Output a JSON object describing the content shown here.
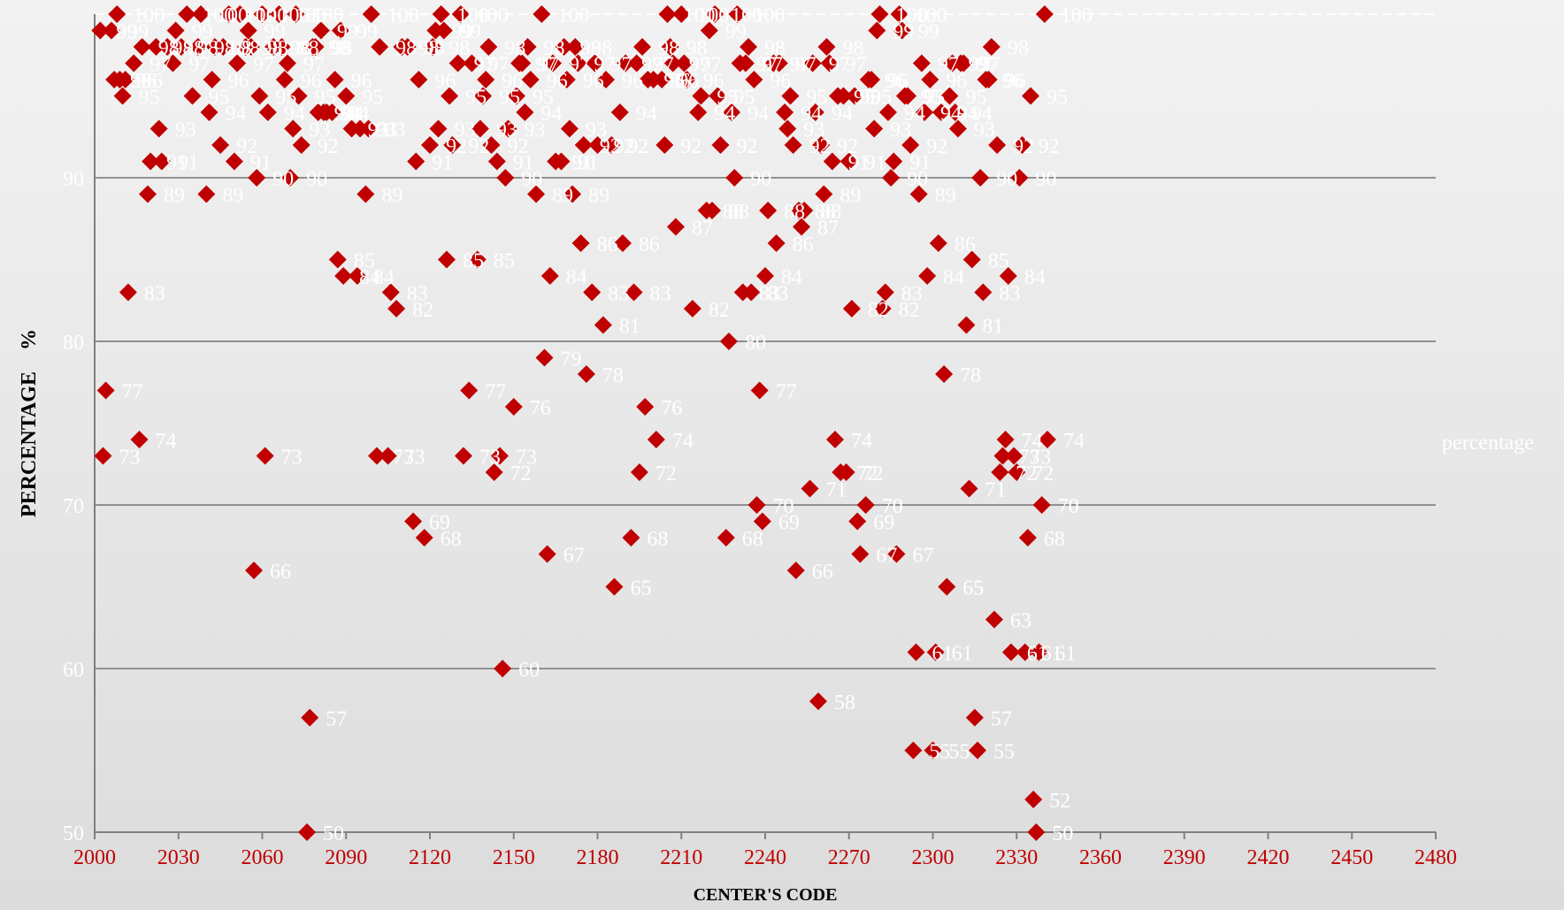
{
  "chart_data": {
    "type": "scatter",
    "xlabel": "CENTER'S CODE",
    "ylabel": "PERCENTAGE    %",
    "xlim": [
      2000,
      2480
    ],
    "ylim": [
      50,
      100
    ],
    "x_ticks": [
      "2000",
      "2030",
      "2060",
      "2090",
      "2120",
      "2150",
      "2180",
      "2210",
      "2240",
      "2270",
      "2300",
      "2330",
      "2360",
      "2390",
      "2420",
      "2450",
      "2480"
    ],
    "y_ticks": [
      "50",
      "60",
      "70",
      "80",
      "90"
    ],
    "grid": "horizontal",
    "legend_position": "right",
    "colors": {
      "marker": "#c00000",
      "tick_x": "#c00000",
      "label": "#ffffff",
      "grid": "#909090"
    },
    "series": [
      {
        "name": "percentage",
        "points": [
          [
            2002,
            99
          ],
          [
            2003,
            73
          ],
          [
            2004,
            77
          ],
          [
            2006,
            99
          ],
          [
            2007,
            96
          ],
          [
            2008,
            100
          ],
          [
            2009,
            96
          ],
          [
            2010,
            95
          ],
          [
            2011,
            96
          ],
          [
            2012,
            83
          ],
          [
            2014,
            97
          ],
          [
            2016,
            74
          ],
          [
            2017,
            98
          ],
          [
            2019,
            89
          ],
          [
            2020,
            91
          ],
          [
            2022,
            98
          ],
          [
            2023,
            93
          ],
          [
            2024,
            91
          ],
          [
            2026,
            98
          ],
          [
            2028,
            97
          ],
          [
            2029,
            99
          ],
          [
            2031,
            98
          ],
          [
            2033,
            100
          ],
          [
            2035,
            95
          ],
          [
            2037,
            98
          ],
          [
            2038,
            100
          ],
          [
            2040,
            89
          ],
          [
            2041,
            94
          ],
          [
            2042,
            96
          ],
          [
            2043,
            98
          ],
          [
            2045,
            92
          ],
          [
            2046,
            98
          ],
          [
            2048,
            100
          ],
          [
            2050,
            91
          ],
          [
            2051,
            97
          ],
          [
            2052,
            100
          ],
          [
            2054,
            98
          ],
          [
            2055,
            99
          ],
          [
            2056,
            98
          ],
          [
            2057,
            66
          ],
          [
            2058,
            90
          ],
          [
            2059,
            95
          ],
          [
            2060,
            100
          ],
          [
            2061,
            73
          ],
          [
            2062,
            94
          ],
          [
            2064,
            98
          ],
          [
            2066,
            100
          ],
          [
            2067,
            98
          ],
          [
            2068,
            96
          ],
          [
            2069,
            97
          ],
          [
            2070,
            90
          ],
          [
            2071,
            93
          ],
          [
            2072,
            100
          ],
          [
            2073,
            95
          ],
          [
            2074,
            92
          ],
          [
            2076,
            50
          ],
          [
            2077,
            57
          ],
          [
            2078,
            98
          ],
          [
            2079,
            98
          ],
          [
            2080,
            94
          ],
          [
            2081,
            99
          ],
          [
            2082,
            94
          ],
          [
            2083,
            94
          ],
          [
            2085,
            94
          ],
          [
            2086,
            96
          ],
          [
            2087,
            85
          ],
          [
            2088,
            99
          ],
          [
            2089,
            84
          ],
          [
            2090,
            95
          ],
          [
            2092,
            93
          ],
          [
            2094,
            84
          ],
          [
            2095,
            93
          ],
          [
            2097,
            89
          ],
          [
            2098,
            93
          ],
          [
            2099,
            100
          ],
          [
            2101,
            73
          ],
          [
            2102,
            98
          ],
          [
            2105,
            73
          ],
          [
            2106,
            83
          ],
          [
            2108,
            82
          ],
          [
            2110,
            98
          ],
          [
            2112,
            98
          ],
          [
            2114,
            69
          ],
          [
            2115,
            91
          ],
          [
            2116,
            96
          ],
          [
            2118,
            68
          ],
          [
            2120,
            92
          ],
          [
            2121,
            98
          ],
          [
            2122,
            99
          ],
          [
            2123,
            93
          ],
          [
            2124,
            100
          ],
          [
            2125,
            99
          ],
          [
            2126,
            85
          ],
          [
            2127,
            95
          ],
          [
            2128,
            92
          ],
          [
            2130,
            97
          ],
          [
            2131,
            100
          ],
          [
            2132,
            73
          ],
          [
            2134,
            77
          ],
          [
            2135,
            97
          ],
          [
            2137,
            85
          ],
          [
            2138,
            93
          ],
          [
            2139,
            95
          ],
          [
            2140,
            96
          ],
          [
            2141,
            98
          ],
          [
            2142,
            92
          ],
          [
            2143,
            72
          ],
          [
            2144,
            91
          ],
          [
            2145,
            73
          ],
          [
            2146,
            60
          ],
          [
            2147,
            90
          ],
          [
            2148,
            93
          ],
          [
            2150,
            76
          ],
          [
            2151,
            95
          ],
          [
            2152,
            97
          ],
          [
            2153,
            97
          ],
          [
            2154,
            94
          ],
          [
            2155,
            98
          ],
          [
            2156,
            96
          ],
          [
            2158,
            89
          ],
          [
            2160,
            100
          ],
          [
            2161,
            79
          ],
          [
            2162,
            67
          ],
          [
            2163,
            84
          ],
          [
            2164,
            97
          ],
          [
            2165,
            91
          ],
          [
            2167,
            91
          ],
          [
            2168,
            98
          ],
          [
            2169,
            96
          ],
          [
            2170,
            93
          ],
          [
            2171,
            89
          ],
          [
            2172,
            98
          ],
          [
            2173,
            97
          ],
          [
            2174,
            86
          ],
          [
            2175,
            92
          ],
          [
            2176,
            78
          ],
          [
            2178,
            83
          ],
          [
            2179,
            97
          ],
          [
            2180,
            92
          ],
          [
            2182,
            81
          ],
          [
            2183,
            96
          ],
          [
            2185,
            92
          ],
          [
            2186,
            65
          ],
          [
            2188,
            94
          ],
          [
            2189,
            86
          ],
          [
            2190,
            97
          ],
          [
            2192,
            68
          ],
          [
            2193,
            83
          ],
          [
            2194,
            97
          ],
          [
            2195,
            72
          ],
          [
            2196,
            98
          ],
          [
            2197,
            76
          ],
          [
            2198,
            96
          ],
          [
            2200,
            96
          ],
          [
            2201,
            74
          ],
          [
            2203,
            96
          ],
          [
            2204,
            92
          ],
          [
            2205,
            100
          ],
          [
            2206,
            98
          ],
          [
            2207,
            97
          ],
          [
            2208,
            87
          ],
          [
            2210,
            100
          ],
          [
            2211,
            97
          ],
          [
            2212,
            96
          ],
          [
            2214,
            82
          ],
          [
            2216,
            94
          ],
          [
            2217,
            95
          ],
          [
            2219,
            88
          ],
          [
            2220,
            99
          ],
          [
            2221,
            88
          ],
          [
            2222,
            100
          ],
          [
            2223,
            95
          ],
          [
            2224,
            92
          ],
          [
            2226,
            68
          ],
          [
            2227,
            80
          ],
          [
            2228,
            94
          ],
          [
            2229,
            90
          ],
          [
            2230,
            100
          ],
          [
            2231,
            97
          ],
          [
            2232,
            83
          ],
          [
            2233,
            97
          ],
          [
            2234,
            98
          ],
          [
            2235,
            83
          ],
          [
            2236,
            96
          ],
          [
            2237,
            70
          ],
          [
            2238,
            77
          ],
          [
            2239,
            69
          ],
          [
            2240,
            84
          ],
          [
            2241,
            88
          ],
          [
            2243,
            97
          ],
          [
            2244,
            86
          ],
          [
            2245,
            97
          ],
          [
            2247,
            94
          ],
          [
            2248,
            93
          ],
          [
            2249,
            95
          ],
          [
            2250,
            92
          ],
          [
            2251,
            66
          ],
          [
            2252,
            88
          ],
          [
            2253,
            87
          ],
          [
            2254,
            88
          ],
          [
            2256,
            71
          ],
          [
            2257,
            97
          ],
          [
            2258,
            94
          ],
          [
            2259,
            58
          ],
          [
            2260,
            92
          ],
          [
            2261,
            89
          ],
          [
            2262,
            98
          ],
          [
            2263,
            97
          ],
          [
            2264,
            91
          ],
          [
            2265,
            74
          ],
          [
            2266,
            95
          ],
          [
            2267,
            72
          ],
          [
            2268,
            95
          ],
          [
            2269,
            72
          ],
          [
            2270,
            91
          ],
          [
            2271,
            82
          ],
          [
            2272,
            95
          ],
          [
            2273,
            69
          ],
          [
            2274,
            67
          ],
          [
            2276,
            70
          ],
          [
            2277,
            96
          ],
          [
            2278,
            96
          ],
          [
            2279,
            93
          ],
          [
            2280,
            99
          ],
          [
            2281,
            100
          ],
          [
            2282,
            82
          ],
          [
            2283,
            83
          ],
          [
            2284,
            94
          ],
          [
            2285,
            90
          ],
          [
            2286,
            91
          ],
          [
            2287,
            67
          ],
          [
            2288,
            100
          ],
          [
            2289,
            99
          ],
          [
            2290,
            95
          ],
          [
            2291,
            95
          ],
          [
            2292,
            92
          ],
          [
            2293,
            55
          ],
          [
            2294,
            61
          ],
          [
            2295,
            89
          ],
          [
            2296,
            97
          ],
          [
            2297,
            94
          ],
          [
            2298,
            84
          ],
          [
            2299,
            96
          ],
          [
            2300,
            55
          ],
          [
            2301,
            61
          ],
          [
            2302,
            86
          ],
          [
            2303,
            94
          ],
          [
            2304,
            78
          ],
          [
            2305,
            65
          ],
          [
            2306,
            95
          ],
          [
            2307,
            97
          ],
          [
            2308,
            94
          ],
          [
            2309,
            93
          ],
          [
            2310,
            97
          ],
          [
            2311,
            97
          ],
          [
            2312,
            81
          ],
          [
            2313,
            71
          ],
          [
            2314,
            85
          ],
          [
            2315,
            57
          ],
          [
            2316,
            55
          ],
          [
            2317,
            90
          ],
          [
            2318,
            83
          ],
          [
            2319,
            96
          ],
          [
            2320,
            96
          ],
          [
            2321,
            98
          ],
          [
            2322,
            63
          ],
          [
            2323,
            92
          ],
          [
            2324,
            72
          ],
          [
            2325,
            73
          ],
          [
            2326,
            74
          ],
          [
            2327,
            84
          ],
          [
            2328,
            61
          ],
          [
            2329,
            73
          ],
          [
            2330,
            72
          ],
          [
            2331,
            90
          ],
          [
            2332,
            92
          ],
          [
            2333,
            61
          ],
          [
            2334,
            68
          ],
          [
            2335,
            95
          ],
          [
            2336,
            52
          ],
          [
            2337,
            50
          ],
          [
            2338,
            61
          ],
          [
            2339,
            70
          ],
          [
            2340,
            100
          ],
          [
            2341,
            74
          ]
        ]
      }
    ],
    "legend": {
      "label": "percentage"
    }
  }
}
